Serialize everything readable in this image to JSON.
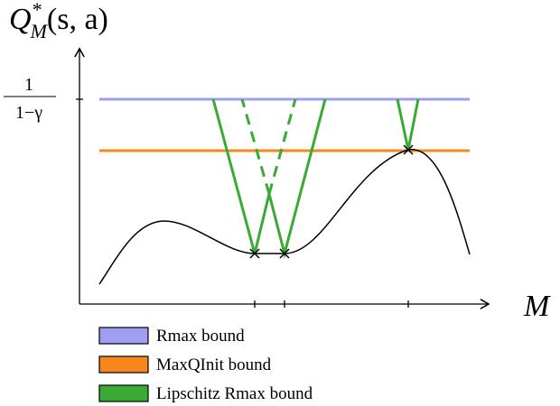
{
  "axes": {
    "y_label": {
      "base": "Q",
      "sup": "*",
      "sub": "M",
      "args": "(s, a)"
    },
    "x_label": "M",
    "y_tick": {
      "numerator": "1",
      "denominator": "1−γ"
    }
  },
  "legend": [
    {
      "label": "Rmax bound",
      "color": "#9e9ef5"
    },
    {
      "label": "MaxQInit bound",
      "color": "#f7861c"
    },
    {
      "label": "Lipschitz Rmax bound",
      "color": "#3aaa35"
    }
  ]
}
